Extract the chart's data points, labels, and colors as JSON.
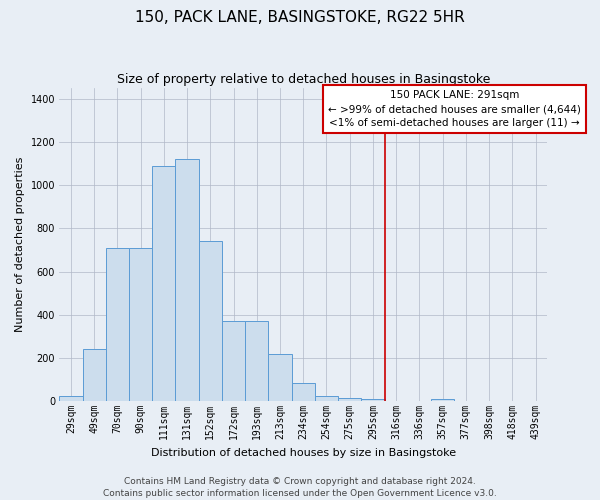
{
  "title": "150, PACK LANE, BASINGSTOKE, RG22 5HR",
  "subtitle": "Size of property relative to detached houses in Basingstoke",
  "xlabel": "Distribution of detached houses by size in Basingstoke",
  "ylabel": "Number of detached properties",
  "categories": [
    "29sqm",
    "49sqm",
    "70sqm",
    "90sqm",
    "111sqm",
    "131sqm",
    "152sqm",
    "172sqm",
    "193sqm",
    "213sqm",
    "234sqm",
    "254sqm",
    "275sqm",
    "295sqm",
    "316sqm",
    "336sqm",
    "357sqm",
    "377sqm",
    "398sqm",
    "418sqm",
    "439sqm"
  ],
  "values": [
    25,
    240,
    710,
    710,
    1090,
    1120,
    740,
    370,
    370,
    220,
    85,
    25,
    15,
    10,
    0,
    0,
    10,
    0,
    0,
    0,
    0
  ],
  "bar_color": "#ccdded",
  "bar_edge_color": "#5b9bd5",
  "annotation_box_text": "150 PACK LANE: 291sqm\n← >99% of detached houses are smaller (4,644)\n<1% of semi-detached houses are larger (11) →",
  "annotation_box_color": "#ffffff",
  "annotation_box_edge_color": "#cc0000",
  "vline_color": "#cc0000",
  "vline_x": 13.5,
  "ylim": [
    0,
    1450
  ],
  "yticks": [
    0,
    200,
    400,
    600,
    800,
    1000,
    1200,
    1400
  ],
  "background_color": "#e8eef5",
  "plot_bg_color": "#e8eef5",
  "footer_text": "Contains HM Land Registry data © Crown copyright and database right 2024.\nContains public sector information licensed under the Open Government Licence v3.0.",
  "title_fontsize": 11,
  "subtitle_fontsize": 9,
  "xlabel_fontsize": 8,
  "ylabel_fontsize": 8,
  "tick_fontsize": 7,
  "footer_fontsize": 6.5,
  "annot_fontsize": 7.5
}
